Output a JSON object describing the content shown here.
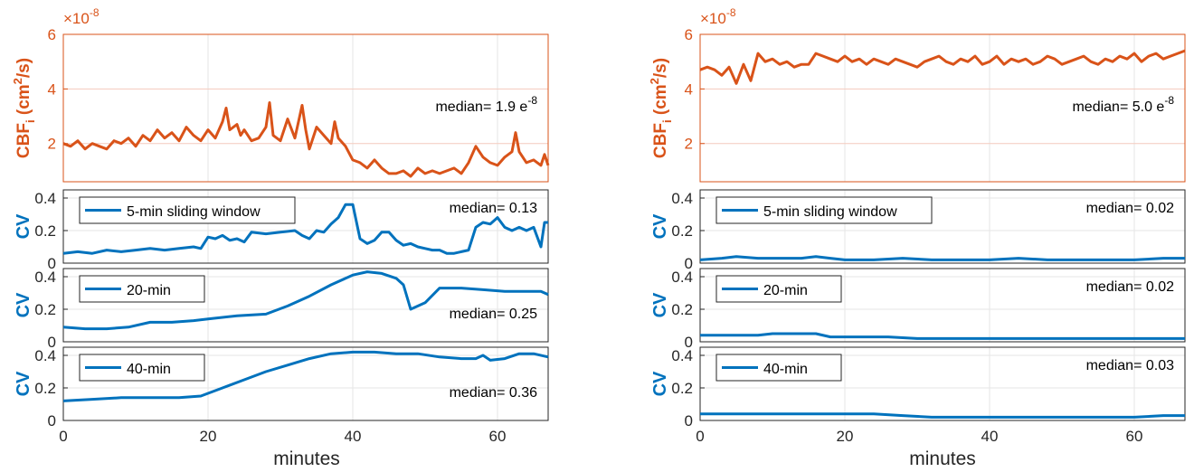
{
  "figure": {
    "xlabel": "minutes",
    "colors": {
      "cbf": "#D95319",
      "cv": "#0072BD",
      "grid": "#e6e6e6",
      "cbf_grid": "#f4c9bd",
      "axis": "#262626"
    }
  },
  "chart_data": [
    {
      "type": "line",
      "panel": "left-cbf",
      "ylabel": "CBF",
      "ylabel_sub": "i",
      "ylabel_units": "(cm",
      "ylabel_units_sup": "2",
      "ylabel_units_end": "/s)",
      "scale_base": "×10",
      "scale_exp": "-8",
      "xlim": [
        0,
        67
      ],
      "ylim": [
        0.6,
        6
      ],
      "yticks": [
        "2",
        "4",
        "6"
      ],
      "xticks": [],
      "grid": true,
      "annotation_text": "median= 1.9 e",
      "annotation_sup": "-8",
      "series": [
        {
          "x": [
            0,
            1,
            2,
            3,
            4,
            5,
            6,
            7,
            8,
            9,
            10,
            11,
            12,
            13,
            14,
            15,
            16,
            17,
            18,
            19,
            20,
            21,
            22,
            22.5,
            23,
            24,
            24.5,
            25,
            26,
            27,
            28,
            28.5,
            29,
            30,
            31,
            32,
            33,
            33.5,
            34,
            35,
            36,
            37,
            37.5,
            38,
            39,
            40,
            41,
            42,
            43,
            44,
            45,
            46,
            47,
            48,
            49,
            50,
            51,
            52,
            53,
            54,
            55,
            56,
            57,
            58,
            59,
            60,
            61,
            62,
            62.5,
            63,
            64,
            65,
            66,
            66.5,
            67
          ],
          "values": [
            2.0,
            1.9,
            2.1,
            1.8,
            2.0,
            1.9,
            1.8,
            2.1,
            2.0,
            2.2,
            1.9,
            2.3,
            2.1,
            2.5,
            2.2,
            2.4,
            2.1,
            2.6,
            2.3,
            2.1,
            2.5,
            2.2,
            2.8,
            3.3,
            2.5,
            2.7,
            2.3,
            2.5,
            2.1,
            2.2,
            2.6,
            3.5,
            2.3,
            2.1,
            2.9,
            2.2,
            3.4,
            2.5,
            1.8,
            2.6,
            2.3,
            2.0,
            2.8,
            2.2,
            1.9,
            1.4,
            1.3,
            1.1,
            1.4,
            1.1,
            0.9,
            0.9,
            1.0,
            0.8,
            1.1,
            0.9,
            1.0,
            0.9,
            1.0,
            1.1,
            0.9,
            1.3,
            1.9,
            1.5,
            1.3,
            1.2,
            1.5,
            1.7,
            2.4,
            1.7,
            1.3,
            1.4,
            1.2,
            1.6,
            1.2
          ]
        }
      ]
    },
    {
      "type": "line",
      "panel": "left-cv1",
      "ylabel": "CV",
      "xlim": [
        0,
        67
      ],
      "ylim": [
        0,
        0.45
      ],
      "yticks": [
        "0",
        "0.2",
        "0.4"
      ],
      "xticks": [],
      "grid": true,
      "legend": "5-min sliding window",
      "legend_position": "top-left",
      "annotation_text": "median= 0.13",
      "series": [
        {
          "name": "5-min sliding window",
          "x": [
            0,
            2,
            4,
            6,
            8,
            10,
            12,
            14,
            16,
            18,
            19,
            20,
            21,
            22,
            23,
            24,
            25,
            26,
            28,
            30,
            32,
            33,
            34,
            35,
            36,
            37,
            38,
            39,
            40,
            41,
            42,
            43,
            44,
            45,
            46,
            47,
            48,
            49,
            50,
            51,
            52,
            53,
            54,
            55,
            56,
            57,
            58,
            59,
            60,
            61,
            62,
            63,
            64,
            65,
            66,
            66.5,
            67
          ],
          "values": [
            0.06,
            0.07,
            0.06,
            0.08,
            0.07,
            0.08,
            0.09,
            0.08,
            0.09,
            0.1,
            0.09,
            0.16,
            0.15,
            0.17,
            0.14,
            0.15,
            0.13,
            0.19,
            0.18,
            0.19,
            0.2,
            0.17,
            0.15,
            0.2,
            0.19,
            0.24,
            0.28,
            0.36,
            0.36,
            0.15,
            0.12,
            0.14,
            0.19,
            0.19,
            0.14,
            0.11,
            0.12,
            0.1,
            0.09,
            0.08,
            0.08,
            0.06,
            0.06,
            0.07,
            0.08,
            0.22,
            0.25,
            0.24,
            0.28,
            0.22,
            0.2,
            0.22,
            0.2,
            0.22,
            0.1,
            0.25,
            0.25
          ]
        }
      ]
    },
    {
      "type": "line",
      "panel": "left-cv2",
      "ylabel": "CV",
      "xlim": [
        0,
        67
      ],
      "ylim": [
        0,
        0.45
      ],
      "yticks": [
        "0",
        "0.2",
        "0.4"
      ],
      "xticks": [],
      "grid": true,
      "legend": "20-min",
      "legend_position": "top-left",
      "annotation_text": "median= 0.25",
      "series": [
        {
          "name": "20-min",
          "x": [
            0,
            3,
            6,
            9,
            12,
            15,
            18,
            20,
            24,
            28,
            31,
            34,
            37,
            40,
            42,
            44,
            46,
            47,
            48,
            50,
            52,
            55,
            58,
            61,
            64,
            66,
            67
          ],
          "values": [
            0.09,
            0.08,
            0.08,
            0.09,
            0.12,
            0.12,
            0.13,
            0.14,
            0.16,
            0.17,
            0.22,
            0.28,
            0.35,
            0.41,
            0.43,
            0.42,
            0.39,
            0.35,
            0.2,
            0.24,
            0.33,
            0.33,
            0.32,
            0.31,
            0.31,
            0.31,
            0.29
          ]
        }
      ]
    },
    {
      "type": "line",
      "panel": "left-cv3",
      "ylabel": "CV",
      "xlim": [
        0,
        67
      ],
      "ylim": [
        0,
        0.45
      ],
      "yticks": [
        "0",
        "0.2",
        "0.4"
      ],
      "xticks": [
        "0",
        "20",
        "40",
        "60"
      ],
      "grid": true,
      "legend": "40-min",
      "legend_position": "top-left",
      "annotation_text": "median= 0.36",
      "series": [
        {
          "name": "40-min",
          "x": [
            0,
            4,
            8,
            12,
            16,
            19,
            22,
            25,
            28,
            31,
            34,
            37,
            40,
            43,
            46,
            49,
            52,
            55,
            57,
            58,
            59,
            61,
            63,
            65,
            67
          ],
          "values": [
            0.12,
            0.13,
            0.14,
            0.14,
            0.14,
            0.15,
            0.2,
            0.25,
            0.3,
            0.34,
            0.38,
            0.41,
            0.42,
            0.42,
            0.41,
            0.41,
            0.39,
            0.38,
            0.38,
            0.4,
            0.37,
            0.38,
            0.41,
            0.41,
            0.39
          ]
        }
      ]
    },
    {
      "type": "line",
      "panel": "right-cbf",
      "ylabel": "CBF",
      "ylabel_sub": "i",
      "ylabel_units": "(cm",
      "ylabel_units_sup": "2",
      "ylabel_units_end": "/s)",
      "scale_base": "×10",
      "scale_exp": "-8",
      "xlim": [
        0,
        67
      ],
      "ylim": [
        0.6,
        6
      ],
      "yticks": [
        "2",
        "4",
        "6"
      ],
      "xticks": [],
      "grid": true,
      "annotation_text": "median= 5.0 e",
      "annotation_sup": "-8",
      "series": [
        {
          "x": [
            0,
            1,
            2,
            3,
            4,
            5,
            6,
            7,
            8,
            9,
            10,
            11,
            12,
            13,
            14,
            15,
            16,
            17,
            18,
            19,
            20,
            21,
            22,
            23,
            24,
            25,
            26,
            27,
            28,
            29,
            30,
            31,
            32,
            33,
            34,
            35,
            36,
            37,
            38,
            39,
            40,
            41,
            42,
            43,
            44,
            45,
            46,
            47,
            48,
            49,
            50,
            51,
            52,
            53,
            54,
            55,
            56,
            57,
            58,
            59,
            60,
            61,
            62,
            63,
            64,
            65,
            66,
            67
          ],
          "values": [
            4.7,
            4.8,
            4.7,
            4.5,
            4.8,
            4.2,
            4.9,
            4.3,
            5.3,
            5.0,
            5.1,
            4.9,
            5.0,
            4.8,
            4.9,
            4.9,
            5.3,
            5.2,
            5.1,
            5.0,
            5.2,
            5.0,
            5.1,
            4.9,
            5.1,
            5.0,
            4.9,
            5.1,
            5.0,
            4.9,
            4.8,
            5.0,
            5.1,
            5.2,
            5.0,
            4.9,
            5.1,
            5.0,
            5.2,
            4.9,
            5.0,
            5.2,
            4.9,
            5.1,
            5.0,
            5.1,
            4.9,
            5.0,
            5.2,
            5.1,
            4.9,
            5.0,
            5.1,
            5.2,
            5.0,
            4.9,
            5.1,
            5.0,
            5.2,
            5.1,
            5.3,
            5.0,
            5.2,
            5.3,
            5.1,
            5.2,
            5.3,
            5.4
          ]
        }
      ]
    },
    {
      "type": "line",
      "panel": "right-cv1",
      "ylabel": "CV",
      "xlim": [
        0,
        67
      ],
      "ylim": [
        0,
        0.45
      ],
      "yticks": [
        "0",
        "0.2",
        "0.4"
      ],
      "xticks": [],
      "grid": true,
      "legend": "5-min sliding window",
      "legend_position": "top-left",
      "annotation_text": "median= 0.02",
      "series": [
        {
          "name": "5-min sliding window",
          "x": [
            0,
            3,
            5,
            8,
            11,
            14,
            16,
            18,
            20,
            24,
            28,
            32,
            36,
            40,
            44,
            48,
            52,
            56,
            60,
            64,
            67
          ],
          "values": [
            0.02,
            0.03,
            0.04,
            0.03,
            0.03,
            0.03,
            0.04,
            0.03,
            0.02,
            0.02,
            0.03,
            0.02,
            0.02,
            0.02,
            0.03,
            0.02,
            0.02,
            0.02,
            0.02,
            0.03,
            0.03
          ]
        }
      ]
    },
    {
      "type": "line",
      "panel": "right-cv2",
      "ylabel": "CV",
      "xlim": [
        0,
        67
      ],
      "ylim": [
        0,
        0.45
      ],
      "yticks": [
        "0",
        "0.2",
        "0.4"
      ],
      "xticks": [],
      "grid": true,
      "legend": "20-min",
      "legend_position": "top-left",
      "annotation_text": "median= 0.02",
      "series": [
        {
          "name": "20-min",
          "x": [
            0,
            4,
            8,
            10,
            14,
            16,
            18,
            22,
            26,
            30,
            34,
            38,
            42,
            46,
            50,
            54,
            58,
            62,
            67
          ],
          "values": [
            0.04,
            0.04,
            0.04,
            0.05,
            0.05,
            0.05,
            0.03,
            0.03,
            0.03,
            0.02,
            0.02,
            0.02,
            0.02,
            0.02,
            0.02,
            0.02,
            0.02,
            0.02,
            0.02
          ]
        }
      ]
    },
    {
      "type": "line",
      "panel": "right-cv3",
      "ylabel": "CV",
      "xlim": [
        0,
        67
      ],
      "ylim": [
        0,
        0.45
      ],
      "yticks": [
        "0",
        "0.2",
        "0.4"
      ],
      "xticks": [
        "0",
        "20",
        "40",
        "60"
      ],
      "grid": true,
      "legend": "40-min",
      "legend_position": "top-left",
      "annotation_text": "median= 0.03",
      "series": [
        {
          "name": "40-min",
          "x": [
            0,
            5,
            10,
            15,
            20,
            24,
            28,
            32,
            36,
            40,
            44,
            48,
            52,
            56,
            60,
            64,
            67
          ],
          "values": [
            0.04,
            0.04,
            0.04,
            0.04,
            0.04,
            0.04,
            0.03,
            0.02,
            0.02,
            0.02,
            0.02,
            0.02,
            0.02,
            0.02,
            0.02,
            0.03,
            0.03
          ]
        }
      ]
    }
  ]
}
